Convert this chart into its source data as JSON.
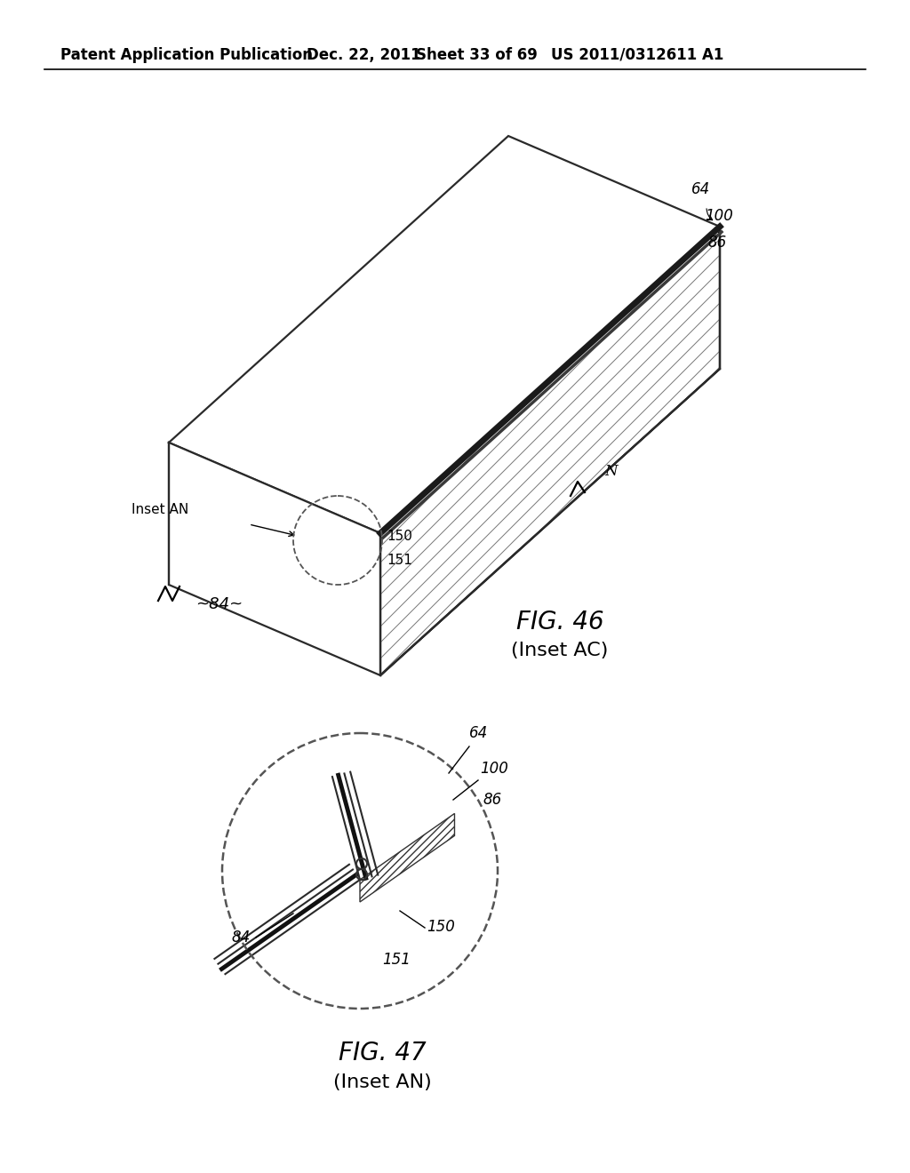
{
  "bg_color": "#ffffff",
  "header_text": "Patent Application Publication",
  "header_date": "Dec. 22, 2011",
  "header_sheet": "Sheet 33 of 69",
  "header_patent": "US 2011/0312611 A1",
  "fig46_caption": "FIG. 46",
  "fig46_sub": "(Inset AC)",
  "fig47_caption": "FIG. 47",
  "fig47_sub": "(Inset AN)",
  "label_64": "64",
  "label_100": "100",
  "label_86": "86",
  "label_84_main": "~84~",
  "label_150_main": "150",
  "label_151_main": "151",
  "label_N_main": "N",
  "label_insetAN": "Inset AN",
  "label_84_inset": "84",
  "label_64_inset": "64",
  "label_100_inset": "100",
  "label_86_inset": "86",
  "label_150_inset": "150",
  "label_151_inset": "151",
  "line_color": "#2a2a2a",
  "line_width": 1.6,
  "hatch_color": "#555555"
}
